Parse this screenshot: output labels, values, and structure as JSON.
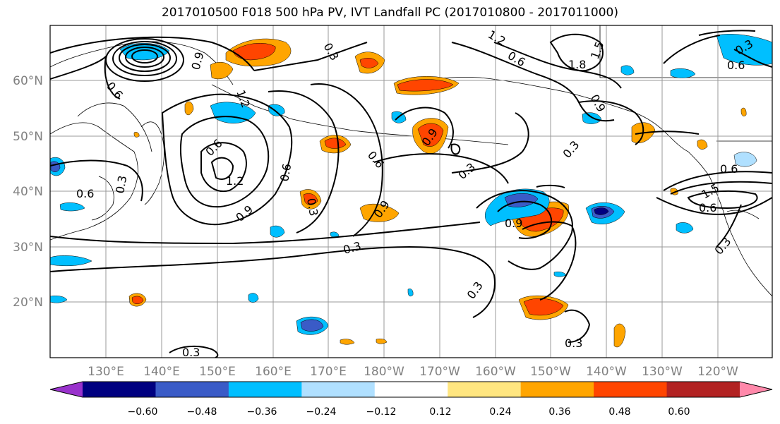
{
  "title": "2017010500 F018 500 hPa PV, IVT Landfall PC (2017010800 - 2017011000)",
  "lat_labels": [
    "60°N",
    "50°N",
    "40°N",
    "30°N",
    "20°N"
  ],
  "lon_labels": [
    "130°E",
    "140°E",
    "150°E",
    "160°E",
    "170°E",
    "180°W",
    "170°W",
    "160°W",
    "150°W",
    "140°W",
    "130°W",
    "120°W"
  ],
  "colorbar": {
    "ticks": [
      "−0.60",
      "−0.48",
      "−0.36",
      "−0.24",
      "−0.12",
      "0.12",
      "0.24",
      "0.36",
      "0.48",
      "0.60"
    ],
    "colors": [
      "#9932CC",
      "#000080",
      "#3A5BC7",
      "#00BFFF",
      "#B0E0FF",
      "#FFFFFF",
      "#FFE680",
      "#FFA500",
      "#FF4500",
      "#B22222",
      "#FF88AA"
    ]
  },
  "contour_labels": [
    "1.2",
    "0.6",
    "1.8",
    "1.5",
    "0.9",
    "0.6",
    "0.3",
    "1.2",
    "0.9",
    "0.6",
    "0.3",
    "0.6",
    "1.2",
    "0.9",
    "0.6",
    "0.3",
    "0.6",
    "0.9",
    "0.3",
    "0.3",
    "0.6",
    "0.3",
    "0.9",
    "0.3",
    "0.3",
    "0.9",
    "1.5",
    "0.6",
    "0.3",
    "0.3",
    "0.6",
    "0.3"
  ]
}
